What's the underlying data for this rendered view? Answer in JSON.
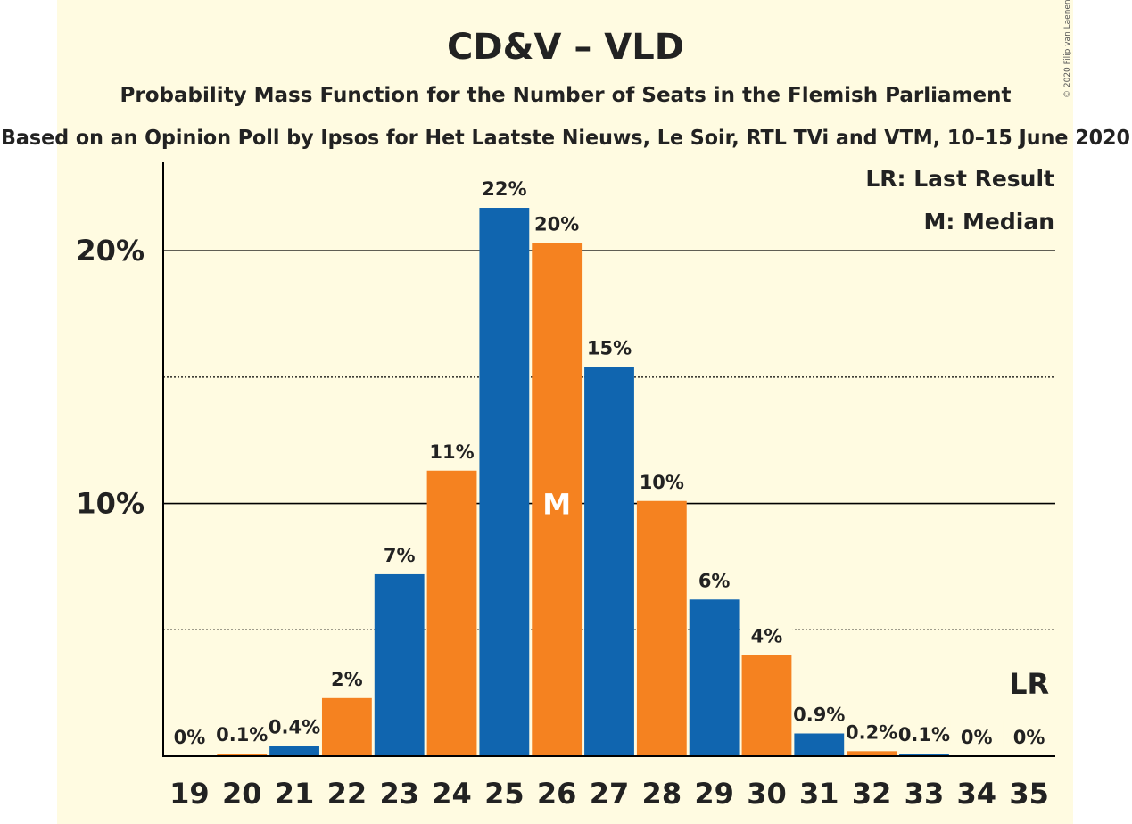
{
  "chart_data": {
    "type": "bar",
    "title": "CD&V – VLD",
    "subtitle": "Probability Mass Function for the Number of Seats in the Flemish Parliament",
    "subtitle2": "Based on an Opinion Poll by Ipsos for Het Laatste Nieuws, Le Soir, RTL TVi and VTM, 10–15 June 2020",
    "copyright": "© 2020 Filip van Laenen",
    "categories": [
      "19",
      "20",
      "21",
      "22",
      "23",
      "24",
      "25",
      "26",
      "27",
      "28",
      "29",
      "30",
      "31",
      "32",
      "33",
      "34",
      "35"
    ],
    "values": [
      0,
      0.1,
      0.4,
      2.3,
      7.2,
      11.3,
      21.7,
      20.3,
      15.4,
      10.1,
      6.2,
      4.0,
      0.9,
      0.2,
      0.1,
      0,
      0
    ],
    "data_labels": [
      "0%",
      "0.1%",
      "0.4%",
      "2%",
      "7%",
      "11%",
      "22%",
      "20%",
      "15%",
      "10%",
      "6%",
      "4%",
      "0.9%",
      "0.2%",
      "0.1%",
      "0%",
      "0%"
    ],
    "bar_colors": [
      "#1065AF",
      "#F58220"
    ],
    "ylim": [
      0,
      23.5
    ],
    "y_ticks": [
      {
        "value": 10,
        "label": "10%"
      },
      {
        "value": 20,
        "label": "20%"
      }
    ],
    "minor_gridlines": [
      5,
      15
    ],
    "median": {
      "category": "26",
      "label": "M"
    },
    "last_result": {
      "category": "35",
      "label": "LR"
    },
    "legend": [
      "LR: Last Result",
      "M: Median"
    ],
    "legend_position": "top-right",
    "background": "#FFFBE1"
  }
}
